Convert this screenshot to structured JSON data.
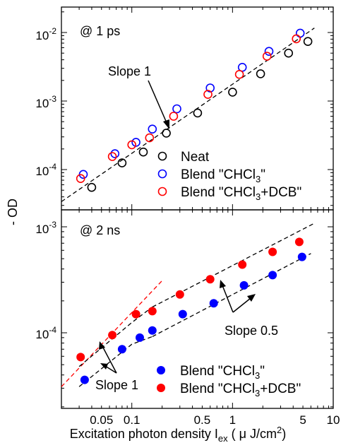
{
  "chart_data": [
    {
      "type": "scatter",
      "panel_label": "@ 1 ps",
      "xscale": "log",
      "yscale": "log",
      "xlim": [
        0.02,
        10
      ],
      "ylim": [
        3e-05,
        0.015
      ],
      "ytick_labels": [
        {
          "value": 0.0001,
          "base": "10",
          "exp": "-4"
        },
        {
          "value": 0.001,
          "base": "10",
          "exp": "-3"
        },
        {
          "value": 0.01,
          "base": "10",
          "exp": "-2"
        }
      ],
      "legend_position": "lower-right",
      "series": [
        {
          "name": "Neat",
          "marker": "open-circle",
          "color": "#000000",
          "x": [
            0.04,
            0.08,
            0.13,
            0.22,
            0.45,
            1.0,
            1.9,
            3.6,
            5.6
          ],
          "y": [
            5.5e-05,
            0.000125,
            0.00018,
            0.00034,
            0.00067,
            0.00135,
            0.0025,
            0.005,
            0.0074
          ]
        },
        {
          "name": "Blend \"CHCl3\"",
          "marker": "open-circle",
          "color": "#0000ff",
          "x": [
            0.033,
            0.068,
            0.11,
            0.16,
            0.28,
            0.6,
            1.25,
            2.3,
            4.7
          ],
          "y": [
            8.5e-05,
            0.00017,
            0.00025,
            0.00039,
            0.00077,
            0.00155,
            0.0031,
            0.0053,
            0.0098
          ]
        },
        {
          "name": "Blend \"CHCl3+DCB\"",
          "marker": "open-circle",
          "color": "#ff0000",
          "x": [
            0.031,
            0.064,
            0.1,
            0.15,
            0.26,
            0.57,
            1.17,
            2.2,
            4.3
          ],
          "y": [
            7.4e-05,
            0.000155,
            0.00023,
            0.00029,
            0.0006,
            0.00125,
            0.00245,
            0.0045,
            0.0081
          ]
        }
      ],
      "fit_lines": [
        {
          "label": "",
          "style": "black-dashed",
          "x": [
            0.02,
            6.5
          ],
          "y": [
            3.4e-05,
            0.0116
          ]
        }
      ],
      "annotations": [
        {
          "text": "Slope 1",
          "arrow_to": {
            "x": 0.23,
            "y": 0.00039
          }
        }
      ]
    },
    {
      "type": "scatter",
      "panel_label": "@ 2 ns",
      "xscale": "log",
      "yscale": "log",
      "xlim": [
        0.02,
        10
      ],
      "ylim": [
        2.2e-05,
        0.0012
      ],
      "ytick_labels": [
        {
          "value": 0.0001,
          "base": "10",
          "exp": "-4"
        },
        {
          "value": 0.001,
          "base": "10",
          "exp": "-3"
        }
      ],
      "xtick_labels": [
        {
          "value": 0.05,
          "label": "0.05"
        },
        {
          "value": 0.1,
          "label": "0.1"
        },
        {
          "value": 0.5,
          "label": "0.5"
        },
        {
          "value": 1,
          "label": "1"
        },
        {
          "value": 5,
          "label": "5"
        },
        {
          "value": 10,
          "label": "10"
        }
      ],
      "legend_position": "lower-right",
      "series": [
        {
          "name": "Blend \"CHCl3\"",
          "marker": "filled-circle",
          "color": "#0000ff",
          "x": [
            0.034,
            0.08,
            0.12,
            0.16,
            0.32,
            0.65,
            1.3,
            2.5,
            4.9
          ],
          "y": [
            3.6e-05,
            7e-05,
            9e-05,
            0.000105,
            0.00015,
            0.00019,
            0.00028,
            0.00035,
            0.00052
          ]
        },
        {
          "name": "Blend \"CHCl3+DCB\"",
          "marker": "filled-circle",
          "color": "#ff0000",
          "x": [
            0.031,
            0.064,
            0.11,
            0.16,
            0.3,
            0.6,
            1.25,
            2.5,
            4.6
          ],
          "y": [
            5.9e-05,
            9.5e-05,
            0.00015,
            0.00016,
            0.00023,
            0.00032,
            0.00044,
            0.00058,
            0.00072
          ]
        }
      ],
      "fit_lines": [
        {
          "label": "",
          "style": "red-dashed",
          "x": [
            0.02,
            0.2
          ],
          "y": [
            3.1e-05,
            0.00031
          ]
        },
        {
          "label": "",
          "style": "black-dashed",
          "x": [
            0.03,
            0.1,
            0.16
          ],
          "y": [
            4.8e-05,
            0.000125,
            0.000175
          ]
        },
        {
          "label": "",
          "style": "black-dashed",
          "x": [
            0.16,
            6.5
          ],
          "y": [
            0.000175,
            0.00108
          ]
        },
        {
          "label": "",
          "style": "black-dashed",
          "x": [
            0.03,
            0.1,
            0.16
          ],
          "y": [
            3.1e-05,
            7.8e-05,
            9.2e-05
          ]
        },
        {
          "label": "",
          "style": "black-dashed",
          "x": [
            0.16,
            6.0
          ],
          "y": [
            9.2e-05,
            0.00056
          ]
        }
      ],
      "annotations": [
        {
          "text": "Slope 0.5",
          "arrows_to": [
            {
              "x": 0.75,
              "y": 0.00031
            },
            {
              "x": 1.4,
              "y": 0.00025
            }
          ]
        },
        {
          "text": "Slope 1",
          "arrows_to": [
            {
              "x": 0.066,
              "y": 8.2e-05
            },
            {
              "x": 0.048,
              "y": 4.7e-05
            }
          ]
        }
      ]
    }
  ],
  "y_axis_title": "- OD",
  "x_axis_title": {
    "main": "Excitation photon density I",
    "sub": "ex",
    "unit_open": " ( μ J/cm",
    "unit_sup": "2",
    "unit_close": ")"
  }
}
